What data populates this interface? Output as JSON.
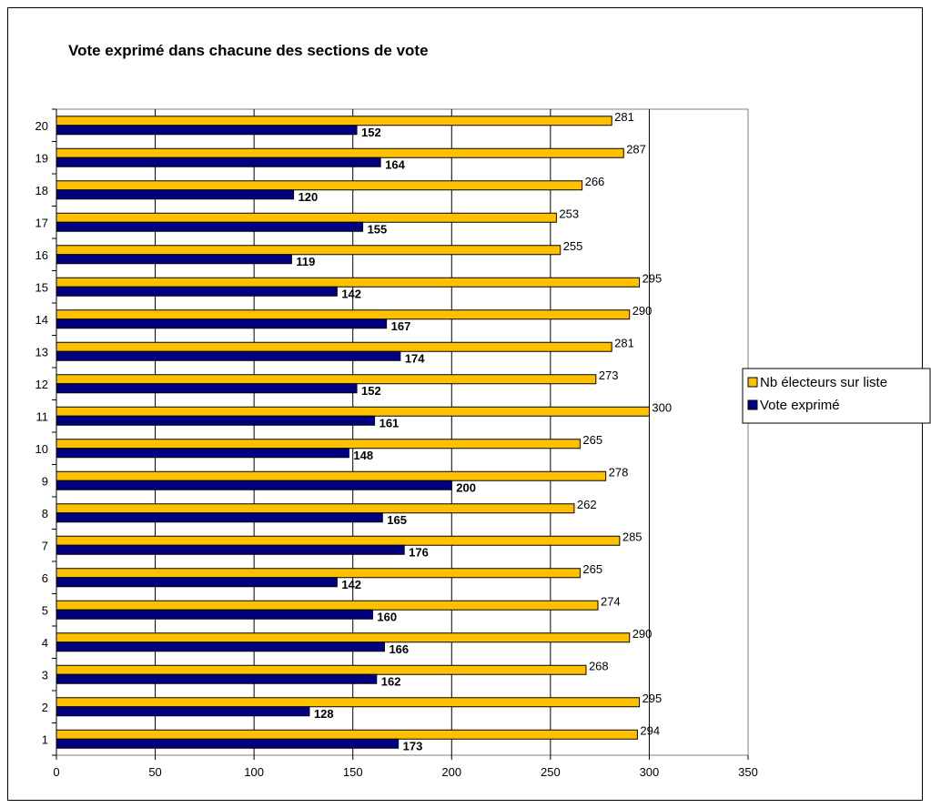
{
  "chart_data": {
    "type": "bar",
    "orientation": "horizontal",
    "title": "Vote exprimé dans chacune des sections de vote",
    "xlabel": "",
    "ylabel": "",
    "categories": [
      "1",
      "2",
      "3",
      "4",
      "5",
      "6",
      "7",
      "8",
      "9",
      "10",
      "11",
      "12",
      "13",
      "14",
      "15",
      "16",
      "17",
      "18",
      "19",
      "20"
    ],
    "series": [
      {
        "name": "Nb électeurs sur liste",
        "color": "#FFC000",
        "values": [
          294,
          295,
          268,
          290,
          274,
          265,
          285,
          262,
          278,
          265,
          300,
          273,
          281,
          290,
          295,
          255,
          253,
          266,
          287,
          281
        ]
      },
      {
        "name": "Vote exprimé",
        "color": "#000080",
        "values": [
          173,
          128,
          162,
          166,
          160,
          142,
          176,
          165,
          200,
          148,
          161,
          152,
          174,
          167,
          142,
          119,
          155,
          120,
          164,
          152
        ]
      }
    ],
    "x_ticks": [
      0,
      50,
      100,
      150,
      200,
      250,
      300,
      350
    ],
    "xlim": [
      0,
      350
    ],
    "grid": true,
    "legend_position": "right"
  }
}
